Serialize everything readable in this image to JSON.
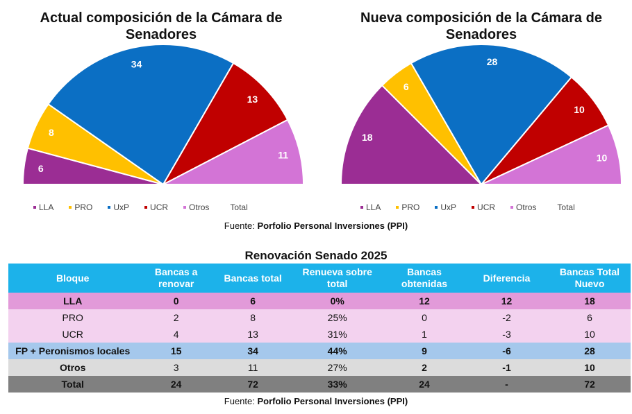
{
  "chart_data": [
    {
      "type": "pie",
      "subtype": "semicircle",
      "title": "Actual composición de la Cámara de Senadores",
      "categories": [
        "LLA",
        "PRO",
        "UxP",
        "UCR",
        "Otros"
      ],
      "values": [
        6,
        8,
        34,
        13,
        11
      ],
      "legend": [
        "LLA",
        "PRO",
        "UxP",
        "UCR",
        "Otros",
        "Total"
      ],
      "legend_position": "bottom"
    },
    {
      "type": "pie",
      "subtype": "semicircle",
      "title": "Nueva composición de la Cámara de Senadores",
      "categories": [
        "LLA",
        "PRO",
        "UxP",
        "UCR",
        "Otros"
      ],
      "values": [
        18,
        6,
        28,
        10,
        10
      ],
      "legend": [
        "LLA",
        "PRO",
        "UxP",
        "UCR",
        "Otros",
        "Total"
      ],
      "legend_position": "bottom"
    }
  ],
  "colors": {
    "LLA": "#9b2d94",
    "PRO": "#ffc000",
    "UxP": "#0b6fc4",
    "UCR": "#c00000",
    "Otros": "#d374d6",
    "Total": "#ffffff"
  },
  "source": {
    "prefix": "Fuente: ",
    "name": "Porfolio Personal Inversiones (PPI)"
  },
  "table": {
    "title": "Renovación Senado 2025",
    "headers": [
      "Bloque",
      "Bancas a renovar",
      "Bancas total",
      "Renueva sobre total",
      "Bancas obtenidas",
      "Diferencia",
      "Bancas Total Nuevo"
    ],
    "rows": [
      [
        "LLA",
        "0",
        "6",
        "0%",
        "12",
        "12",
        "18"
      ],
      [
        "PRO",
        "2",
        "8",
        "25%",
        "0",
        "-2",
        "6"
      ],
      [
        "UCR",
        "4",
        "13",
        "31%",
        "1",
        "-3",
        "10"
      ],
      [
        "FP + Peronismos locales",
        "15",
        "34",
        "44%",
        "9",
        "-6",
        "28"
      ],
      [
        "Otros",
        "3",
        "11",
        "27%",
        "2",
        "-1",
        "10"
      ],
      [
        "Total",
        "24",
        "72",
        "33%",
        "24",
        "-",
        "72"
      ]
    ]
  }
}
